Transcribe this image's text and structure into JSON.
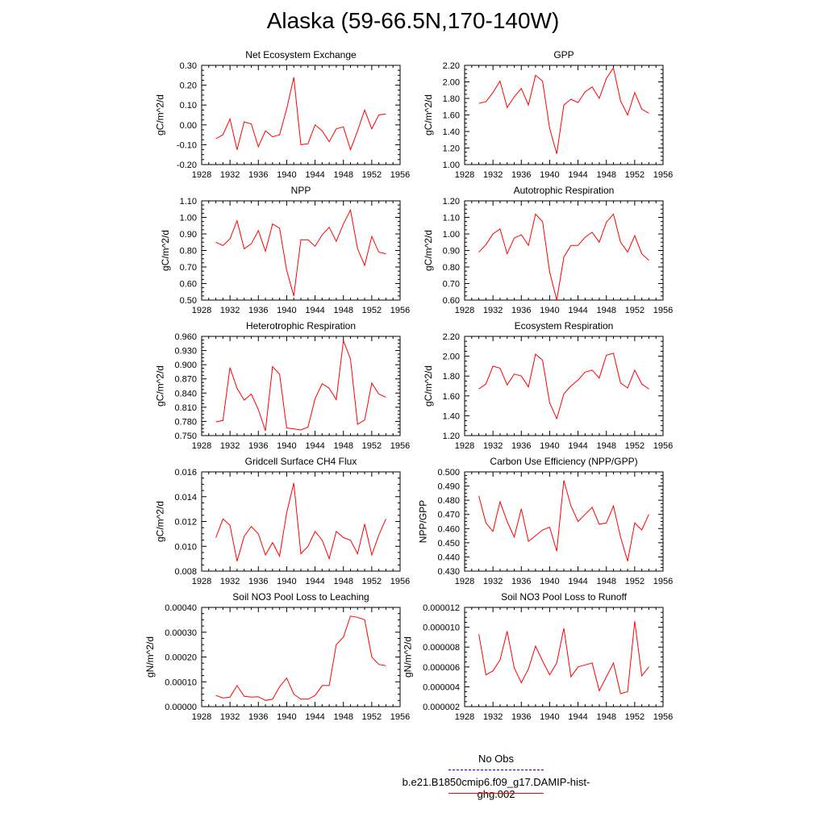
{
  "title": "Alaska (59-66.5N,170-140W)",
  "colors": {
    "model_line": "#ff0000",
    "obs_line": "#0000ff",
    "axis": "#000000"
  },
  "legend": {
    "obs_label": "No Obs",
    "case_label": "b.e21.B1850cmip6.f09_g17.DAMIP-hist-ghg.002"
  },
  "chart_data": [
    {
      "type": "line",
      "title": "Net Ecosystem Exchange",
      "ylabel": "gC/m^2/d",
      "xlim": [
        1928,
        1956
      ],
      "ylim": [
        -0.2,
        0.3
      ],
      "x_ticks": [
        "1928",
        "1932",
        "1936",
        "1940",
        "1944",
        "1948",
        "1952",
        "1956"
      ],
      "y_ticks": [
        "-0.20",
        "-0.10",
        "0.00",
        "0.10",
        "0.20",
        "0.30"
      ],
      "x": [
        1930,
        1931,
        1932,
        1933,
        1934,
        1935,
        1936,
        1937,
        1938,
        1939,
        1940,
        1941,
        1942,
        1943,
        1944,
        1945,
        1946,
        1947,
        1948,
        1949,
        1950,
        1951,
        1952,
        1953,
        1954
      ],
      "series": [
        {
          "values": [
            -0.07,
            -0.05,
            0.03,
            -0.125,
            0.015,
            0.005,
            -0.11,
            -0.03,
            -0.06,
            -0.05,
            0.08,
            0.24,
            -0.1,
            -0.095,
            0.0,
            -0.03,
            -0.085,
            -0.02,
            -0.01,
            -0.125,
            -0.03,
            0.075,
            -0.02,
            0.05,
            0.055
          ]
        }
      ]
    },
    {
      "type": "line",
      "title": "GPP",
      "ylabel": "gC/m^2/d",
      "xlim": [
        1928,
        1956
      ],
      "ylim": [
        1.0,
        2.2
      ],
      "x_ticks": [
        "1928",
        "1932",
        "1936",
        "1940",
        "1944",
        "1948",
        "1952",
        "1956"
      ],
      "y_ticks": [
        "1.00",
        "1.20",
        "1.40",
        "1.60",
        "1.80",
        "2.00",
        "2.20"
      ],
      "x": [
        1930,
        1931,
        1932,
        1933,
        1934,
        1935,
        1936,
        1937,
        1938,
        1939,
        1940,
        1941,
        1942,
        1943,
        1944,
        1945,
        1946,
        1947,
        1948,
        1949,
        1950,
        1951,
        1952,
        1953,
        1954
      ],
      "series": [
        {
          "values": [
            1.74,
            1.76,
            1.87,
            2.01,
            1.69,
            1.82,
            1.92,
            1.72,
            2.08,
            2.01,
            1.44,
            1.13,
            1.72,
            1.79,
            1.75,
            1.88,
            1.94,
            1.8,
            2.04,
            2.17,
            1.77,
            1.6,
            1.87,
            1.67,
            1.62
          ]
        }
      ]
    },
    {
      "type": "line",
      "title": "NPP",
      "ylabel": "gC/m^2/d",
      "xlim": [
        1928,
        1956
      ],
      "ylim": [
        0.5,
        1.1
      ],
      "x_ticks": [
        "1928",
        "1932",
        "1936",
        "1940",
        "1944",
        "1948",
        "1952",
        "1956"
      ],
      "y_ticks": [
        "0.50",
        "0.60",
        "0.70",
        "0.80",
        "0.90",
        "1.00",
        "1.10"
      ],
      "x": [
        1930,
        1931,
        1932,
        1933,
        1934,
        1935,
        1936,
        1937,
        1938,
        1939,
        1940,
        1941,
        1942,
        1943,
        1944,
        1945,
        1946,
        1947,
        1948,
        1949,
        1950,
        1951,
        1952,
        1953,
        1954
      ],
      "series": [
        {
          "values": [
            0.85,
            0.83,
            0.87,
            0.98,
            0.81,
            0.84,
            0.92,
            0.795,
            0.96,
            0.935,
            0.68,
            0.525,
            0.865,
            0.865,
            0.825,
            0.895,
            0.94,
            0.855,
            0.96,
            1.045,
            0.81,
            0.71,
            0.885,
            0.79,
            0.78
          ]
        }
      ]
    },
    {
      "type": "line",
      "title": "Autotrophic Respiration",
      "ylabel": "gC/m^2/d",
      "xlim": [
        1928,
        1956
      ],
      "ylim": [
        0.6,
        1.2
      ],
      "x_ticks": [
        "1928",
        "1932",
        "1936",
        "1940",
        "1944",
        "1948",
        "1952",
        "1956"
      ],
      "y_ticks": [
        "0.60",
        "0.70",
        "0.80",
        "0.90",
        "1.00",
        "1.10",
        "1.20"
      ],
      "x": [
        1930,
        1931,
        1932,
        1933,
        1934,
        1935,
        1936,
        1937,
        1938,
        1939,
        1940,
        1941,
        1942,
        1943,
        1944,
        1945,
        1946,
        1947,
        1948,
        1949,
        1950,
        1951,
        1952,
        1953,
        1954
      ],
      "series": [
        {
          "values": [
            0.89,
            0.935,
            1.0,
            1.03,
            0.88,
            0.975,
            0.995,
            0.93,
            1.12,
            1.075,
            0.77,
            0.6,
            0.86,
            0.93,
            0.93,
            0.98,
            1.01,
            0.95,
            1.07,
            1.12,
            0.95,
            0.89,
            0.99,
            0.88,
            0.84
          ]
        }
      ]
    },
    {
      "type": "line",
      "title": "Heterotrophic Respiration",
      "ylabel": "gC/m^2/d",
      "xlim": [
        1928,
        1956
      ],
      "ylim": [
        0.75,
        0.96
      ],
      "x_ticks": [
        "1928",
        "1932",
        "1936",
        "1940",
        "1944",
        "1948",
        "1952",
        "1956"
      ],
      "y_ticks": [
        "0.750",
        "0.780",
        "0.810",
        "0.840",
        "0.870",
        "0.900",
        "0.930",
        "0.960"
      ],
      "x": [
        1930,
        1931,
        1932,
        1933,
        1934,
        1935,
        1936,
        1937,
        1938,
        1939,
        1940,
        1941,
        1942,
        1943,
        1944,
        1945,
        1946,
        1947,
        1948,
        1949,
        1950,
        1951,
        1952,
        1953,
        1954
      ],
      "series": [
        {
          "values": [
            0.779,
            0.782,
            0.894,
            0.85,
            0.825,
            0.838,
            0.805,
            0.76,
            0.896,
            0.88,
            0.766,
            0.764,
            0.762,
            0.768,
            0.828,
            0.86,
            0.85,
            0.826,
            0.951,
            0.912,
            0.774,
            0.783,
            0.861,
            0.838,
            0.831
          ]
        }
      ]
    },
    {
      "type": "line",
      "title": "Ecosystem Respiration",
      "ylabel": "gC/m^2/d",
      "xlim": [
        1928,
        1956
      ],
      "ylim": [
        1.2,
        2.2
      ],
      "x_ticks": [
        "1928",
        "1932",
        "1936",
        "1940",
        "1944",
        "1948",
        "1952",
        "1956"
      ],
      "y_ticks": [
        "1.20",
        "1.40",
        "1.60",
        "1.80",
        "2.00",
        "2.20"
      ],
      "x": [
        1930,
        1931,
        1932,
        1933,
        1934,
        1935,
        1936,
        1937,
        1938,
        1939,
        1940,
        1941,
        1942,
        1943,
        1944,
        1945,
        1946,
        1947,
        1948,
        1949,
        1950,
        1951,
        1952,
        1953,
        1954
      ],
      "series": [
        {
          "values": [
            1.67,
            1.72,
            1.9,
            1.88,
            1.71,
            1.82,
            1.8,
            1.69,
            2.02,
            1.96,
            1.53,
            1.37,
            1.62,
            1.7,
            1.76,
            1.84,
            1.86,
            1.78,
            2.01,
            2.03,
            1.73,
            1.68,
            1.86,
            1.72,
            1.67
          ]
        }
      ]
    },
    {
      "type": "line",
      "title": "Gridcell Surface CH4 Flux",
      "ylabel": "gC/m^2/d",
      "xlim": [
        1928,
        1956
      ],
      "ylim": [
        0.008,
        0.016
      ],
      "x_ticks": [
        "1928",
        "1932",
        "1936",
        "1940",
        "1944",
        "1948",
        "1952",
        "1956"
      ],
      "y_ticks": [
        "0.008",
        "0.010",
        "0.012",
        "0.014",
        "0.016"
      ],
      "x": [
        1930,
        1931,
        1932,
        1933,
        1934,
        1935,
        1936,
        1937,
        1938,
        1939,
        1940,
        1941,
        1942,
        1943,
        1944,
        1945,
        1946,
        1947,
        1948,
        1949,
        1950,
        1951,
        1952,
        1953,
        1954
      ],
      "series": [
        {
          "values": [
            0.0107,
            0.0122,
            0.0117,
            0.0088,
            0.0108,
            0.0116,
            0.011,
            0.0093,
            0.0103,
            0.0092,
            0.0127,
            0.0151,
            0.0094,
            0.01,
            0.0112,
            0.0105,
            0.009,
            0.0112,
            0.0107,
            0.0105,
            0.0094,
            0.0118,
            0.0093,
            0.0109,
            0.0122
          ]
        }
      ]
    },
    {
      "type": "line",
      "title": "Carbon Use Efficiency (NPP/GPP)",
      "ylabel": "NPP/GPP",
      "xlim": [
        1928,
        1956
      ],
      "ylim": [
        0.43,
        0.5
      ],
      "x_ticks": [
        "1928",
        "1932",
        "1936",
        "1940",
        "1944",
        "1948",
        "1952",
        "1956"
      ],
      "y_ticks": [
        "0.430",
        "0.440",
        "0.450",
        "0.460",
        "0.470",
        "0.480",
        "0.490",
        "0.500"
      ],
      "x": [
        1930,
        1931,
        1932,
        1933,
        1934,
        1935,
        1936,
        1937,
        1938,
        1939,
        1940,
        1941,
        1942,
        1943,
        1944,
        1945,
        1946,
        1947,
        1948,
        1949,
        1950,
        1951,
        1952,
        1953,
        1954
      ],
      "series": [
        {
          "values": [
            0.483,
            0.464,
            0.458,
            0.479,
            0.465,
            0.454,
            0.474,
            0.451,
            0.455,
            0.459,
            0.461,
            0.444,
            0.494,
            0.476,
            0.465,
            0.47,
            0.475,
            0.463,
            0.464,
            0.476,
            0.454,
            0.437,
            0.464,
            0.459,
            0.47
          ]
        }
      ]
    },
    {
      "type": "line",
      "title": "Soil NO3 Pool Loss to Leaching",
      "ylabel": "gN/m^2/d",
      "xlim": [
        1928,
        1956
      ],
      "ylim": [
        0,
        0.0004
      ],
      "x_ticks": [
        "1928",
        "1932",
        "1936",
        "1940",
        "1944",
        "1948",
        "1952",
        "1956"
      ],
      "y_ticks": [
        "0.00000",
        "0.00010",
        "0.00020",
        "0.00030",
        "0.00040"
      ],
      "x": [
        1930,
        1931,
        1932,
        1933,
        1934,
        1935,
        1936,
        1937,
        1938,
        1939,
        1940,
        1941,
        1942,
        1943,
        1944,
        1945,
        1946,
        1947,
        1948,
        1949,
        1950,
        1951,
        1952,
        1953,
        1954
      ],
      "series": [
        {
          "values": [
            4.5e-05,
            3.5e-05,
            3.8e-05,
            8.5e-05,
            4.2e-05,
            3.8e-05,
            4e-05,
            2.5e-05,
            3e-05,
            8e-05,
            0.000115,
            5e-05,
            3e-05,
            3e-05,
            4.5e-05,
            8.5e-05,
            8.5e-05,
            0.00025,
            0.00028,
            0.000365,
            0.00036,
            0.00035,
            0.0002,
            0.00017,
            0.000165
          ]
        }
      ]
    },
    {
      "type": "line",
      "title": "Soil NO3 Pool Loss to Runoff",
      "ylabel": "gN/m^2/d",
      "xlim": [
        1928,
        1956
      ],
      "ylim": [
        2e-06,
        1.2e-05
      ],
      "x_ticks": [
        "1928",
        "1932",
        "1936",
        "1940",
        "1944",
        "1948",
        "1952",
        "1956"
      ],
      "y_ticks": [
        "0.000002",
        "0.000004",
        "0.000006",
        "0.000008",
        "0.000010",
        "0.000012"
      ],
      "x": [
        1930,
        1931,
        1932,
        1933,
        1934,
        1935,
        1936,
        1937,
        1938,
        1939,
        1940,
        1941,
        1942,
        1943,
        1944,
        1945,
        1946,
        1947,
        1948,
        1949,
        1950,
        1951,
        1952,
        1953,
        1954
      ],
      "series": [
        {
          "values": [
            9.3e-06,
            5.2e-06,
            5.6e-06,
            6.7e-06,
            9.6e-06,
            5.9e-06,
            4.4e-06,
            5.8e-06,
            8.1e-06,
            6.6e-06,
            5.2e-06,
            6.4e-06,
            9.9e-06,
            5e-06,
            6e-06,
            6.2e-06,
            6.4e-06,
            3.6e-06,
            5e-06,
            6.4e-06,
            3.3e-06,
            3.5e-06,
            1.06e-05,
            5.1e-06,
            6e-06
          ]
        }
      ]
    }
  ]
}
